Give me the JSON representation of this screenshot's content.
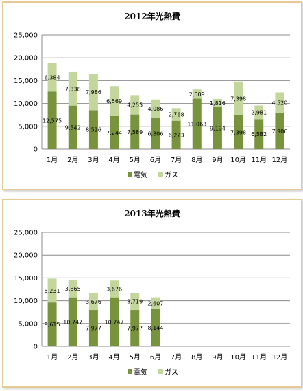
{
  "colors": {
    "electricity": "#77933c",
    "gas": "#c3d69b",
    "grid": "#8c8c8c",
    "frame": "#e7c993"
  },
  "chart_data": [
    {
      "type": "bar",
      "stacked": true,
      "title": "2012年光熱費",
      "categories": [
        "1月",
        "2月",
        "3月",
        "4月",
        "5月",
        "6月",
        "7月",
        "8月",
        "9月",
        "10月",
        "11月",
        "12月"
      ],
      "series": [
        {
          "name": "電気",
          "values": [
            12575,
            9542,
            8526,
            7244,
            7589,
            6806,
            6223,
            11063,
            9194,
            7398,
            6582,
            7906
          ]
        },
        {
          "name": "ガス",
          "values": [
            6384,
            7338,
            7986,
            6569,
            4255,
            4086,
            2768,
            2009,
            1816,
            7398,
            2981,
            4520
          ]
        }
      ],
      "data_labels": {
        "電気": [
          "12,575",
          "9,542",
          "8,526",
          "7,244",
          "7,589",
          "6,806",
          "6,223",
          "11,063",
          "9,194",
          "7,398",
          "6,582",
          "7,906"
        ],
        "ガス": [
          "6,384",
          "7,338",
          "7,986",
          "6,569",
          "4,255",
          "4,086",
          "2,768",
          "2,009",
          "1,816",
          "7,398",
          "2,981",
          "4,520"
        ]
      },
      "ylim": [
        0,
        25000
      ],
      "yticks": [
        0,
        5000,
        10000,
        15000,
        20000,
        25000
      ],
      "ytick_labels": [
        "0",
        "5,000",
        "10,000",
        "15,000",
        "20,000",
        "25,000"
      ],
      "grid": true,
      "legend": "bottom"
    },
    {
      "type": "bar",
      "stacked": true,
      "title": "2013年光熱費",
      "categories": [
        "1月",
        "2月",
        "3月",
        "4月",
        "5月",
        "6月",
        "7月",
        "8月",
        "9月",
        "10月",
        "11月",
        "12月"
      ],
      "series": [
        {
          "name": "電気",
          "values": [
            9615,
            10747,
            7977,
            10747,
            7977,
            8144,
            null,
            null,
            null,
            null,
            null,
            null
          ]
        },
        {
          "name": "ガス",
          "values": [
            5231,
            3865,
            3676,
            3676,
            3719,
            2607,
            null,
            null,
            null,
            null,
            null,
            null
          ]
        }
      ],
      "data_labels": {
        "電気": [
          "9,615",
          "10,747",
          "7,977",
          "10,747",
          "7,977",
          "8,144",
          "",
          "",
          "",
          "",
          "",
          ""
        ],
        "ガス": [
          "5,231",
          "3,865",
          "3,676",
          "3,676",
          "3,719",
          "2,607",
          "",
          "",
          "",
          "",
          "",
          ""
        ]
      },
      "ylim": [
        0,
        25000
      ],
      "yticks": [
        0,
        5000,
        10000,
        15000,
        20000,
        25000
      ],
      "ytick_labels": [
        "0",
        "5,000",
        "10,000",
        "15,000",
        "20,000",
        "25,000"
      ],
      "grid": true,
      "legend": "bottom"
    }
  ]
}
